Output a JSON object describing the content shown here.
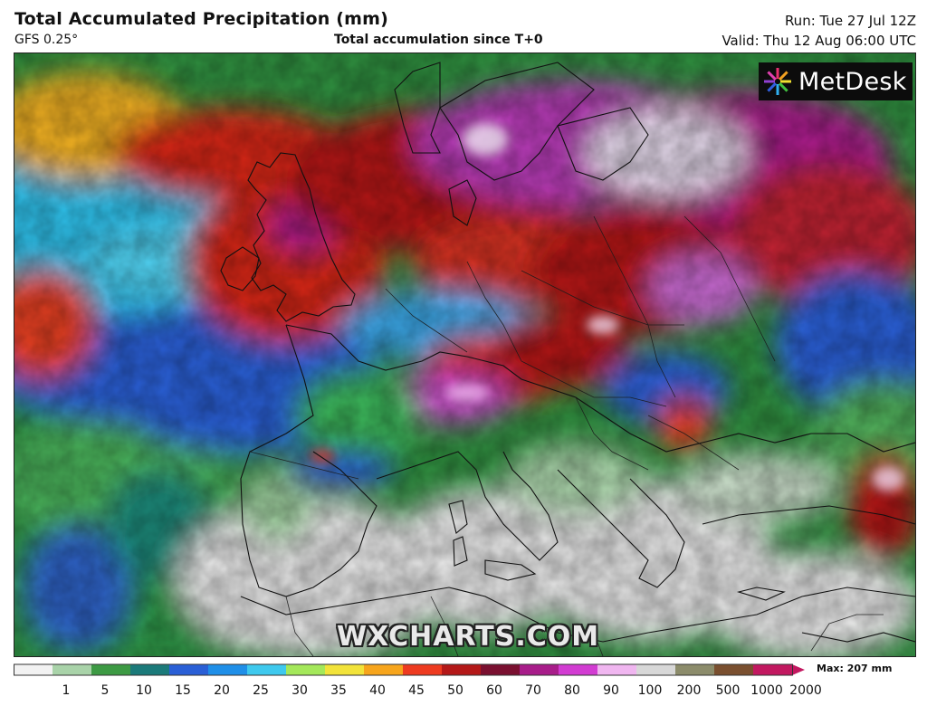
{
  "header": {
    "title": "Total Accumulated Precipitation (mm)",
    "model": "GFS 0.25°",
    "subtitle": "Total accumulation since T+0",
    "run": "Run: Tue 27 Jul 12Z",
    "valid": "Valid: Thu 12 Aug 06:00 UTC"
  },
  "logo": {
    "text": "MetDesk",
    "icon": "metdesk-star-icon"
  },
  "watermark": "WXCHARTS.COM",
  "legend": {
    "max_label": "Max: 207 mm",
    "ticks": [
      "1",
      "5",
      "10",
      "15",
      "20",
      "25",
      "30",
      "35",
      "40",
      "45",
      "50",
      "60",
      "70",
      "80",
      "90",
      "100",
      "200",
      "500",
      "1000",
      "2000"
    ],
    "colors": [
      "#f2f2f2",
      "#a9d3a9",
      "#3d9a44",
      "#1b7a7a",
      "#2a5fd6",
      "#1f8fe8",
      "#3ec9ee",
      "#a4e85a",
      "#f2e33a",
      "#f7a51c",
      "#ee3b20",
      "#b41818",
      "#7a1030",
      "#a81d8a",
      "#d23cd2",
      "#f0b6f0",
      "#d8d8d8",
      "#8c8c6b",
      "#7a4f2f",
      "#c21860"
    ]
  },
  "map": {
    "region": "Europe",
    "colors": {
      "land_low": "#2f8f3f",
      "dry": "#e8e8e8",
      "heavy": "#b41818",
      "extreme": "#a81d8a"
    }
  }
}
